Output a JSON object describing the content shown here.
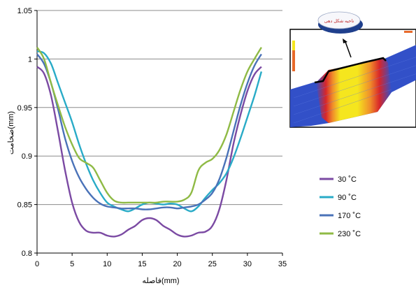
{
  "chart_data": {
    "type": "line",
    "xlabel": "فاصله(mm)",
    "ylabel": "ضخامت(mm)",
    "xlim": [
      0,
      35
    ],
    "ylim": [
      0.8,
      1.05
    ],
    "x_ticks": [
      "0",
      "5",
      "10",
      "15",
      "20",
      "25",
      "30",
      "35"
    ],
    "y_ticks": [
      "0.8",
      "0.85",
      "0.9",
      "0.95",
      "1",
      "1.05"
    ],
    "grid": "horizontal",
    "legend_position": "right",
    "series": [
      {
        "name": "30 ˚C",
        "color": "#7b4aa3",
        "points": [
          [
            0,
            0.992
          ],
          [
            1,
            0.985
          ],
          [
            2,
            0.962
          ],
          [
            3,
            0.925
          ],
          [
            4,
            0.885
          ],
          [
            5,
            0.852
          ],
          [
            6,
            0.832
          ],
          [
            7,
            0.823
          ],
          [
            8,
            0.821
          ],
          [
            9,
            0.821
          ],
          [
            10,
            0.818
          ],
          [
            11,
            0.817
          ],
          [
            12,
            0.819
          ],
          [
            13,
            0.824
          ],
          [
            14,
            0.828
          ],
          [
            15,
            0.834
          ],
          [
            16,
            0.836
          ],
          [
            17,
            0.834
          ],
          [
            18,
            0.828
          ],
          [
            19,
            0.824
          ],
          [
            20,
            0.819
          ],
          [
            21,
            0.817
          ],
          [
            22,
            0.818
          ],
          [
            23,
            0.821
          ],
          [
            24,
            0.822
          ],
          [
            25,
            0.828
          ],
          [
            26,
            0.845
          ],
          [
            27,
            0.875
          ],
          [
            28,
            0.912
          ],
          [
            29,
            0.942
          ],
          [
            30,
            0.967
          ],
          [
            31,
            0.984
          ],
          [
            32,
            0.992
          ]
        ]
      },
      {
        "name": "90 ˚C",
        "color": "#29abc7",
        "points": [
          [
            0,
            1.008
          ],
          [
            1,
            1.006
          ],
          [
            2,
            0.995
          ],
          [
            3,
            0.975
          ],
          [
            4,
            0.955
          ],
          [
            5,
            0.935
          ],
          [
            6,
            0.912
          ],
          [
            7,
            0.892
          ],
          [
            8,
            0.875
          ],
          [
            9,
            0.862
          ],
          [
            10,
            0.852
          ],
          [
            11,
            0.848
          ],
          [
            12,
            0.845
          ],
          [
            13,
            0.843
          ],
          [
            14,
            0.846
          ],
          [
            15,
            0.85
          ],
          [
            16,
            0.852
          ],
          [
            17,
            0.851
          ],
          [
            18,
            0.85
          ],
          [
            19,
            0.851
          ],
          [
            20,
            0.85
          ],
          [
            21,
            0.846
          ],
          [
            22,
            0.843
          ],
          [
            23,
            0.848
          ],
          [
            24,
            0.857
          ],
          [
            25,
            0.865
          ],
          [
            26,
            0.872
          ],
          [
            27,
            0.882
          ],
          [
            28,
            0.898
          ],
          [
            29,
            0.918
          ],
          [
            30,
            0.94
          ],
          [
            31,
            0.962
          ],
          [
            32,
            0.987
          ]
        ]
      },
      {
        "name": "170 ˚C",
        "color": "#4a72b8",
        "points": [
          [
            0,
            1.005
          ],
          [
            1,
            0.995
          ],
          [
            2,
            0.975
          ],
          [
            3,
            0.948
          ],
          [
            4,
            0.918
          ],
          [
            5,
            0.895
          ],
          [
            6,
            0.878
          ],
          [
            7,
            0.866
          ],
          [
            8,
            0.857
          ],
          [
            9,
            0.851
          ],
          [
            10,
            0.848
          ],
          [
            11,
            0.847
          ],
          [
            12,
            0.846
          ],
          [
            13,
            0.846
          ],
          [
            14,
            0.846
          ],
          [
            15,
            0.845
          ],
          [
            16,
            0.845
          ],
          [
            17,
            0.846
          ],
          [
            18,
            0.847
          ],
          [
            19,
            0.847
          ],
          [
            20,
            0.846
          ],
          [
            21,
            0.847
          ],
          [
            22,
            0.848
          ],
          [
            23,
            0.85
          ],
          [
            24,
            0.855
          ],
          [
            25,
            0.862
          ],
          [
            26,
            0.876
          ],
          [
            27,
            0.898
          ],
          [
            28,
            0.925
          ],
          [
            29,
            0.952
          ],
          [
            30,
            0.975
          ],
          [
            31,
            0.993
          ],
          [
            32,
            1.005
          ]
        ]
      },
      {
        "name": "230 ˚C",
        "color": "#8fba45",
        "points": [
          [
            0,
            1.012
          ],
          [
            1,
            1.0
          ],
          [
            2,
            0.975
          ],
          [
            3,
            0.952
          ],
          [
            4,
            0.93
          ],
          [
            5,
            0.912
          ],
          [
            6,
            0.898
          ],
          [
            7,
            0.893
          ],
          [
            8,
            0.888
          ],
          [
            9,
            0.875
          ],
          [
            10,
            0.862
          ],
          [
            11,
            0.854
          ],
          [
            12,
            0.852
          ],
          [
            13,
            0.852
          ],
          [
            14,
            0.852
          ],
          [
            15,
            0.852
          ],
          [
            16,
            0.852
          ],
          [
            17,
            0.852
          ],
          [
            18,
            0.853
          ],
          [
            19,
            0.853
          ],
          [
            20,
            0.853
          ],
          [
            21,
            0.855
          ],
          [
            22,
            0.862
          ],
          [
            23,
            0.885
          ],
          [
            24,
            0.893
          ],
          [
            25,
            0.897
          ],
          [
            26,
            0.906
          ],
          [
            27,
            0.922
          ],
          [
            28,
            0.945
          ],
          [
            29,
            0.968
          ],
          [
            30,
            0.987
          ],
          [
            31,
            1.0
          ],
          [
            32,
            1.012
          ]
        ]
      }
    ]
  },
  "inset": {
    "callout_label": "ناحیه شکل دهی",
    "colors": {
      "tube_blue": "#3250c8",
      "band_red": "#d8262a",
      "band_orange": "#f08c2a",
      "band_yellow": "#f5e61e",
      "scale_bar": "#e86a2a"
    }
  }
}
